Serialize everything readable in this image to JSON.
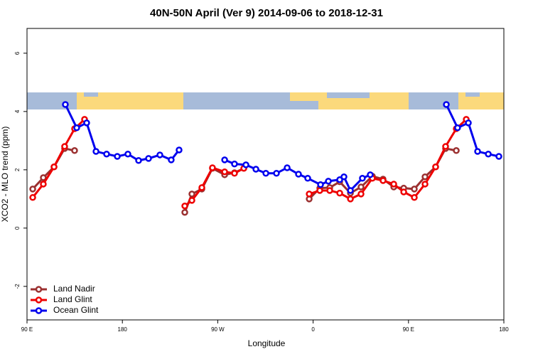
{
  "chart_data": {
    "type": "line",
    "title": "40N-50N April (Ver 9)   2014-09-06 to 2018-12-31",
    "x_label": "Longitude",
    "y_label": "XCO2 - MLO trend (ppm)",
    "xlim": [
      90,
      540
    ],
    "ylim": [
      -3.15,
      6.85
    ],
    "xticks": [
      {
        "value": 90,
        "label": "90 E"
      },
      180,
      {
        "value": 270,
        "label": "90 W"
      },
      {
        "value": 360,
        "label": "0"
      },
      {
        "value": 450,
        "label": "90 E"
      },
      {
        "value": 540,
        "label": "180"
      }
    ],
    "yticks": [
      -2,
      0,
      2,
      4,
      6
    ],
    "legend": "bottom-left",
    "series": [
      {
        "name": "Land Nadir",
        "color": "#9b3030",
        "x": [
          95.4,
          105.4,
          115.5,
          125.5,
          134.9,
          null,
          238.9,
          245.6,
          255,
          265,
          276.5,
          285.8,
          294.6,
          null,
          356.3,
          366.3,
          375.7,
          385.1,
          395.2,
          405.2,
          415.9,
          426,
          436.1,
          445.5,
          455.5,
          465.6,
          475.6,
          485,
          495.1
        ],
        "values": [
          1.34,
          1.73,
          2.1,
          2.73,
          2.66,
          null,
          0.54,
          1.17,
          1.34,
          2.05,
          1.83,
          1.9,
          2.05,
          null,
          1.0,
          1.37,
          1.39,
          1.59,
          1.2,
          1.41,
          1.78,
          1.68,
          1.41,
          1.37,
          1.34,
          1.76,
          2.1,
          2.73,
          2.66
        ]
      },
      {
        "name": "Land Glint",
        "color": "#ee0000",
        "x": [
          95.4,
          105.4,
          115.5,
          125.5,
          134.9,
          144.3,
          null,
          238.9,
          245.6,
          255,
          265,
          276.5,
          285.8,
          294.6,
          null,
          356.3,
          366.3,
          375.7,
          385.1,
          395.2,
          405.2,
          415.9,
          426,
          436.1,
          445.5,
          455.5,
          465.6,
          475.6,
          485,
          495.1,
          504.5
        ],
        "values": [
          1.05,
          1.51,
          2.1,
          2.8,
          3.41,
          3.73,
          null,
          0.76,
          0.95,
          1.39,
          2.07,
          1.93,
          1.88,
          2.05,
          null,
          1.17,
          1.29,
          1.29,
          1.2,
          1.0,
          1.17,
          1.71,
          1.63,
          1.51,
          1.24,
          1.05,
          1.51,
          2.1,
          2.8,
          3.41,
          3.73
        ]
      },
      {
        "name": "Ocean Glint",
        "color": "#0000ee",
        "x": [
          126.2,
          136.9,
          146.3,
          155.1,
          165.1,
          175.2,
          185.2,
          195.3,
          204.7,
          215.4,
          226.1,
          233.5,
          null,
          276.5,
          285.8,
          296.6,
          306,
          315.4,
          325.4,
          335.5,
          346.2,
          354.9,
          367,
          374.4,
          385.1,
          389.1,
          395.2,
          406.5,
          413.9,
          null,
          485.7,
          496.3,
          506.5,
          515.2,
          525.3,
          535.3
        ],
        "values": [
          4.24,
          3.44,
          3.61,
          2.63,
          2.54,
          2.46,
          2.54,
          2.32,
          2.39,
          2.51,
          2.34,
          2.68,
          null,
          2.34,
          2.2,
          2.17,
          2.02,
          1.88,
          1.88,
          2.07,
          1.85,
          1.71,
          1.49,
          1.61,
          1.66,
          1.76,
          1.29,
          1.71,
          1.83,
          null,
          4.24,
          3.44,
          3.61,
          2.63,
          2.54,
          2.46
        ]
      }
    ]
  }
}
